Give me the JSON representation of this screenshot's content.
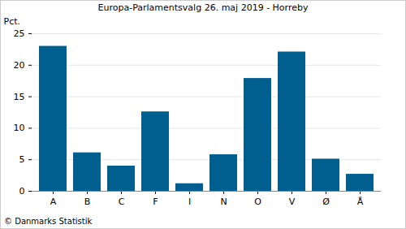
{
  "chart_data": {
    "type": "bar",
    "title": "Europa-Parlamentsvalg 26. maj 2019 - Horreby",
    "y_label": "Pct.",
    "caption": "© Danmarks Statistik",
    "categories": [
      "A",
      "B",
      "C",
      "F",
      "I",
      "N",
      "O",
      "V",
      "Ø",
      "Å"
    ],
    "values": [
      23.0,
      6.1,
      4.0,
      12.6,
      1.2,
      5.8,
      17.9,
      22.1,
      5.1,
      2.7
    ],
    "color": "#005f8f",
    "ylim": [
      0,
      25
    ],
    "yticks": [
      0,
      5,
      10,
      15,
      20,
      25
    ],
    "grid": true
  }
}
